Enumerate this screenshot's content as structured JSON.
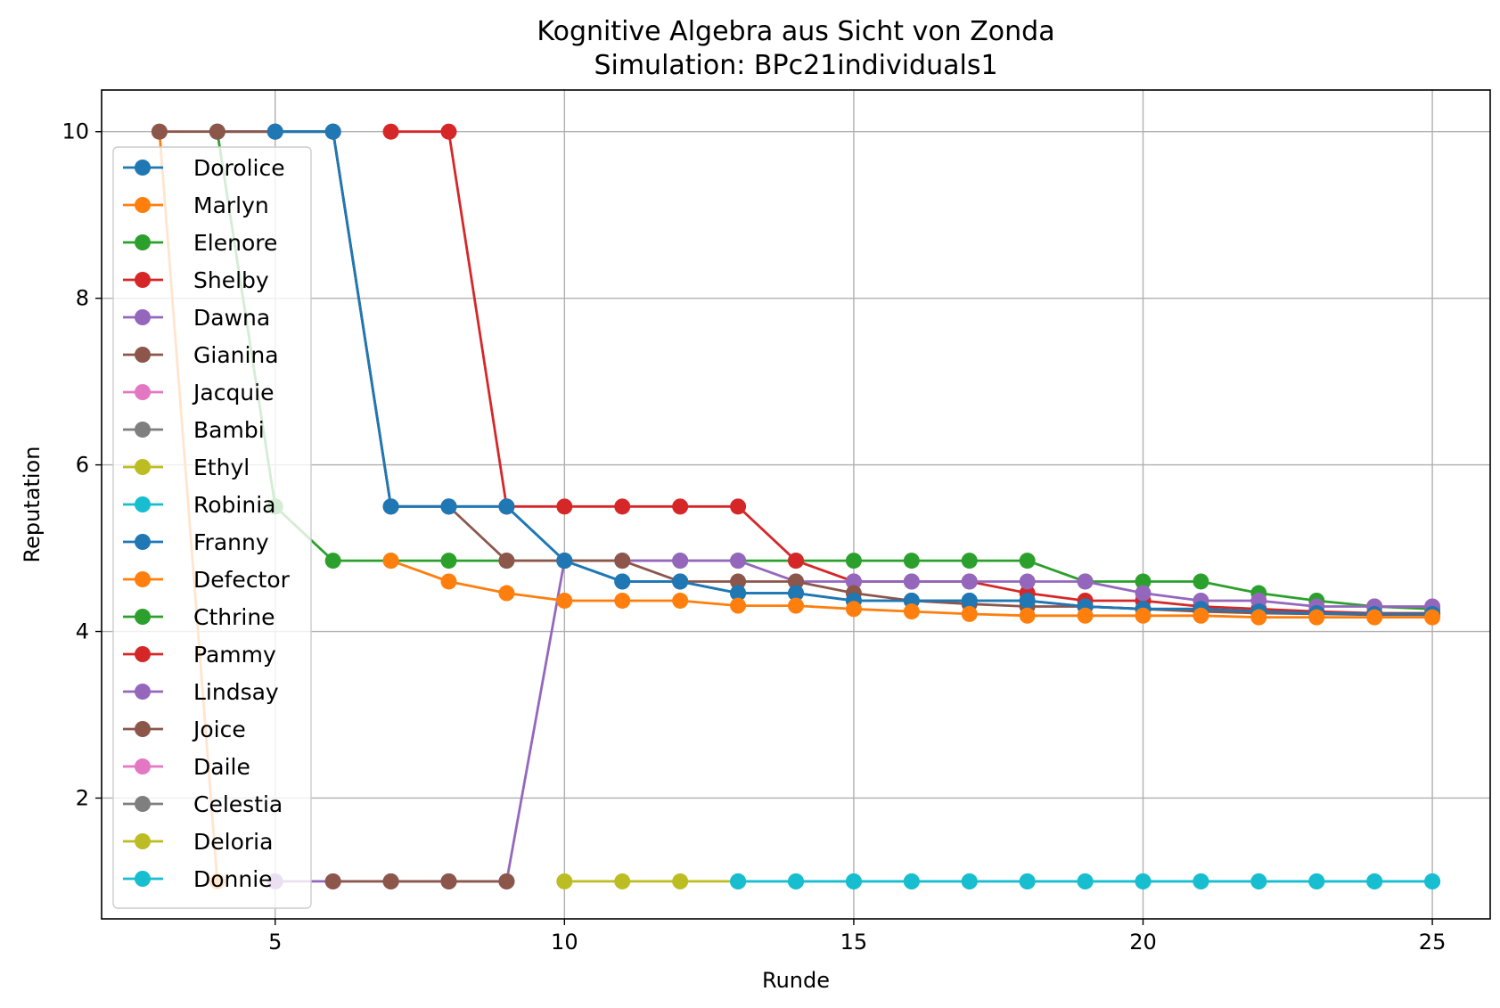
{
  "chart_data": {
    "type": "line",
    "title": "Kognitive Algebra aus Sicht von Zonda",
    "subtitle": "Simulation: BPc21individuals1",
    "xlabel": "Runde",
    "ylabel": "Reputation",
    "xlim": [
      2,
      26
    ],
    "ylim": [
      0.55,
      10.5
    ],
    "xticks": [
      5,
      10,
      15,
      20,
      25
    ],
    "yticks": [
      2,
      4,
      6,
      8,
      10
    ],
    "grid": true,
    "legend_position": "upper-left",
    "series": [
      {
        "name": "Dorolice",
        "color": "#1f77b4",
        "x": [
          4,
          5,
          6,
          7,
          8,
          9,
          10,
          11,
          12,
          13,
          14,
          15,
          16,
          17,
          18,
          19,
          20,
          21,
          22,
          23,
          24,
          25
        ],
        "y": [
          10,
          10,
          10,
          5.5,
          5.5,
          5.5,
          4.85,
          4.6,
          4.6,
          4.46,
          4.46,
          4.37,
          4.37,
          4.37,
          4.37,
          4.3,
          4.27,
          4.27,
          4.24,
          4.22,
          4.21,
          4.21
        ]
      },
      {
        "name": "Marlyn",
        "color": "#ff7f0e",
        "x": [
          3,
          4
        ],
        "y": [
          10,
          1
        ]
      },
      {
        "name": "Elenore",
        "color": "#2ca02c",
        "x": [
          4,
          5,
          6,
          7,
          8,
          9,
          10,
          11,
          12,
          13,
          14,
          15,
          16,
          17,
          18,
          19,
          20,
          21,
          22,
          23,
          24,
          25
        ],
        "y": [
          10,
          5.5,
          4.85,
          4.85,
          4.85,
          4.85,
          4.85,
          4.85,
          4.85,
          4.85,
          4.85,
          4.85,
          4.85,
          4.85,
          4.85,
          4.6,
          4.6,
          4.6,
          4.46,
          4.37,
          4.3,
          4.27
        ]
      },
      {
        "name": "Shelby",
        "color": "#d62728",
        "x": [
          7,
          8,
          9,
          10,
          11,
          12,
          13,
          14,
          15,
          16,
          17,
          18,
          19,
          20,
          21,
          22,
          23,
          24,
          25
        ],
        "y": [
          10,
          10,
          5.5,
          5.5,
          5.5,
          5.5,
          5.5,
          4.85,
          4.6,
          4.6,
          4.6,
          4.46,
          4.37,
          4.37,
          4.3,
          4.27,
          4.24,
          4.22,
          4.22
        ]
      },
      {
        "name": "Dawna",
        "color": "#9467bd",
        "x": [
          5,
          6,
          7,
          8,
          9,
          10,
          11,
          12,
          13,
          14,
          15,
          16,
          17,
          18,
          19,
          20,
          21,
          22,
          23,
          24,
          25
        ],
        "y": [
          1,
          1,
          1,
          1,
          1,
          4.85,
          4.85,
          4.85,
          4.85,
          4.6,
          4.6,
          4.6,
          4.6,
          4.6,
          4.6,
          4.46,
          4.37,
          4.37,
          4.3,
          4.3,
          4.3
        ]
      },
      {
        "name": "Gianina",
        "color": "#8c564b",
        "x": [
          3,
          4,
          5,
          6,
          7,
          8,
          9,
          10,
          11,
          12,
          13,
          14,
          15,
          16,
          17,
          18,
          19,
          20,
          21,
          22,
          23,
          24,
          25
        ],
        "y": [
          10,
          10,
          10,
          10,
          5.5,
          5.5,
          4.85,
          4.85,
          4.85,
          4.6,
          4.6,
          4.6,
          4.46,
          4.37,
          4.33,
          4.3,
          4.3,
          4.27,
          4.24,
          4.22,
          4.21,
          4.2,
          4.2
        ]
      },
      {
        "name": "Jacquie",
        "color": "#e377c2",
        "x": [],
        "y": []
      },
      {
        "name": "Bambi",
        "color": "#7f7f7f",
        "x": [
          7,
          8,
          9
        ],
        "y": [
          1,
          1,
          1
        ]
      },
      {
        "name": "Ethyl",
        "color": "#bcbd22",
        "x": [
          10,
          11,
          12,
          13
        ],
        "y": [
          1,
          1,
          1,
          1
        ]
      },
      {
        "name": "Robinia",
        "color": "#17becf",
        "x": [
          13,
          14,
          15,
          16,
          17,
          18,
          19,
          20,
          21,
          22,
          23,
          24,
          25
        ],
        "y": [
          1,
          1,
          1,
          1,
          1,
          1,
          1,
          1,
          1,
          1,
          1,
          1,
          1
        ]
      },
      {
        "name": "Franny",
        "color": "#1f77b4",
        "x": [
          5,
          6,
          7,
          8,
          9,
          10,
          11,
          12,
          13,
          14,
          15,
          16,
          17,
          18,
          19,
          20,
          21,
          22,
          23,
          24,
          25
        ],
        "y": [
          10,
          10,
          5.5,
          5.5,
          5.5,
          4.85,
          4.6,
          4.6,
          4.46,
          4.46,
          4.37,
          4.37,
          4.37,
          4.37,
          4.3,
          4.27,
          4.27,
          4.24,
          4.22,
          4.21,
          4.21
        ]
      },
      {
        "name": "Defector",
        "color": "#ff7f0e",
        "x": [
          7,
          8,
          9,
          10,
          11,
          12,
          13,
          14,
          15,
          16,
          17,
          18,
          19,
          20,
          21,
          22,
          23,
          24,
          25
        ],
        "y": [
          4.85,
          4.6,
          4.46,
          4.37,
          4.37,
          4.37,
          4.31,
          4.31,
          4.27,
          4.24,
          4.21,
          4.19,
          4.19,
          4.19,
          4.19,
          4.17,
          4.17,
          4.17,
          4.17
        ]
      },
      {
        "name": "Cthrine",
        "color": "#2ca02c",
        "x": [],
        "y": []
      },
      {
        "name": "Pammy",
        "color": "#d62728",
        "x": [],
        "y": []
      },
      {
        "name": "Lindsay",
        "color": "#9467bd",
        "x": [],
        "y": []
      },
      {
        "name": "Joice",
        "color": "#8c564b",
        "x": [
          6,
          7,
          8,
          9
        ],
        "y": [
          1,
          1,
          1,
          1
        ]
      },
      {
        "name": "Daile",
        "color": "#e377c2",
        "x": [],
        "y": []
      },
      {
        "name": "Celestia",
        "color": "#7f7f7f",
        "x": [],
        "y": []
      },
      {
        "name": "Deloria",
        "color": "#bcbd22",
        "x": [],
        "y": []
      },
      {
        "name": "Donnie",
        "color": "#17becf",
        "x": [
          13,
          14,
          15,
          16,
          17,
          18,
          19,
          20,
          21,
          22,
          23,
          24,
          25
        ],
        "y": [
          1,
          1,
          1,
          1,
          1,
          1,
          1,
          1,
          1,
          1,
          1,
          1,
          1
        ]
      }
    ]
  }
}
